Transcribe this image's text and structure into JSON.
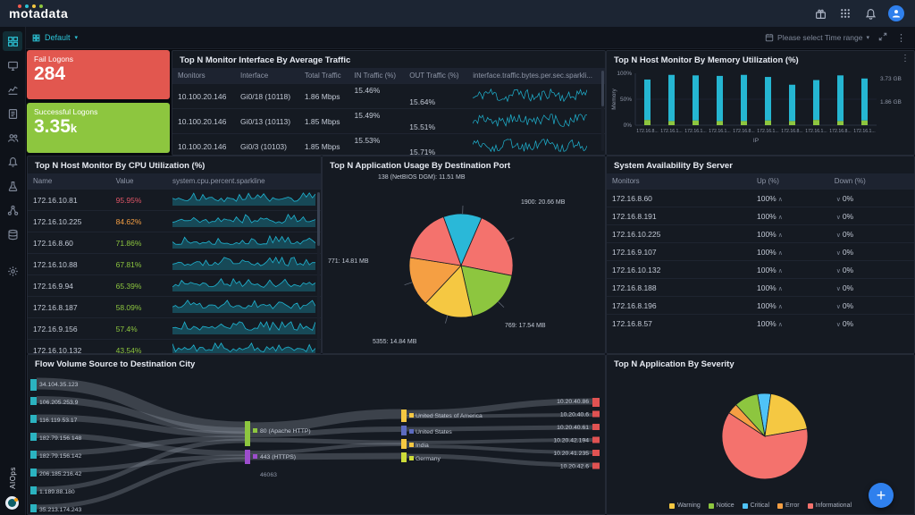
{
  "topbar": {
    "logo_text": "motadata",
    "logo_dot_colors": [
      "#f05a4f",
      "#2cc3d6",
      "#f5c842",
      "#8dc63f"
    ],
    "icons": [
      "gift-icon",
      "apps-icon",
      "bell-icon",
      "user-avatar"
    ]
  },
  "toolbar": {
    "dashboard_selector": "Default",
    "time_range_placeholder": "Please select Time range"
  },
  "sidebar": {
    "bottom_label": "AIOps",
    "items": [
      "dashboard",
      "monitor",
      "metrics",
      "reports",
      "users",
      "alerts",
      "ncm",
      "topology",
      "logs",
      "settings"
    ]
  },
  "stats": {
    "fail": {
      "title": "Fail Logons",
      "value": "284",
      "suffix": "",
      "color": "#e2574f"
    },
    "success": {
      "title": "Successful Logons",
      "value": "3.35",
      "suffix": "k",
      "color": "#8dc63f"
    }
  },
  "traffic_panel": {
    "title": "Top N Monitor Interface By Average Traffic",
    "columns": [
      "Monitors",
      "Interface",
      "Total Traffic",
      "IN Traffic (%)",
      "OUT Traffic (%)",
      "interface.traffic.bytes.per.sec.sparkli..."
    ],
    "rows": [
      {
        "monitor": "10.100.20.146",
        "iface": "Gi0/18 (10118)",
        "total": "1.86 Mbps",
        "in": "15.46%",
        "out": "15.64%"
      },
      {
        "monitor": "10.100.20.146",
        "iface": "Gi0/13 (10113)",
        "total": "1.85 Mbps",
        "in": "15.49%",
        "out": "15.51%"
      },
      {
        "monitor": "10.100.20.146",
        "iface": "Gi0/3 (10103)",
        "total": "1.85 Mbps",
        "in": "15.53%",
        "out": "15.71%"
      }
    ]
  },
  "memory_panel": {
    "title": "Top N Host Monitor By Memory Utilization (%)",
    "chart": {
      "type": "bar",
      "ylabel": "Memory",
      "xlabel": "IP",
      "yticks": [
        "100%",
        "50%",
        "0%"
      ],
      "right_labels": [
        "3.73 GB",
        "1.86 GB"
      ],
      "categories": [
        "172.16.8...",
        "172.16.1...",
        "172.16.1...",
        "172.16.1...",
        "172.16.8...",
        "172.16.1...",
        "172.16.8...",
        "172.16.1...",
        "172.16.8...",
        "172.16.1..."
      ],
      "values": [
        88,
        97,
        96,
        95,
        97,
        93,
        78,
        87,
        96,
        90
      ],
      "base_values": [
        10,
        8,
        9,
        8,
        8,
        9,
        8,
        10,
        8,
        9
      ],
      "bar_color": "#25b6d2",
      "base_color": "#8dc63f",
      "ylim": [
        0,
        100
      ]
    }
  },
  "cpu_panel": {
    "title": "Top N Host Monitor By CPU Utilization (%)",
    "columns": [
      "Name",
      "Value",
      "system.cpu.percent.sparkline"
    ],
    "rows": [
      {
        "name": "172.16.10.81",
        "value": "95.95%",
        "level": "critical"
      },
      {
        "name": "172.16.10.225",
        "value": "84.62%",
        "level": "warning"
      },
      {
        "name": "172.16.8.60",
        "value": "71.86%",
        "level": "ok"
      },
      {
        "name": "172.16.10.88",
        "value": "67.81%",
        "level": "ok"
      },
      {
        "name": "172.16.9.94",
        "value": "65.39%",
        "level": "ok"
      },
      {
        "name": "172.16.8.187",
        "value": "58.09%",
        "level": "ok"
      },
      {
        "name": "172.16.9.156",
        "value": "57.4%",
        "level": "ok"
      },
      {
        "name": "172.16.10.132",
        "value": "43.54%",
        "level": "ok"
      }
    ]
  },
  "port_pie_panel": {
    "title": "Top N Application Usage By Destination Port",
    "chart": {
      "type": "pie",
      "slices": [
        {
          "label": "138 (NetBIOS DGM): 11.51 MB",
          "value": 11.51,
          "color": "#2ab8d8"
        },
        {
          "label": "1900: 20.66 MB",
          "value": 20.66,
          "color": "#f4726d"
        },
        {
          "label": "769: 17.54 MB",
          "value": 17.54,
          "color": "#8dc63f"
        },
        {
          "label": "5355: 14.84 MB",
          "value": 14.84,
          "color": "#f5c842"
        },
        {
          "label": "771: 14.81 MB",
          "value": 14.81,
          "color": "#f59f43"
        },
        {
          "label": "",
          "value": 16.2,
          "color": "#f4726d"
        }
      ]
    }
  },
  "availability_panel": {
    "title": "System Availability By Server",
    "columns": [
      "Monitors",
      "Up (%)",
      "Down (%)"
    ],
    "rows": [
      {
        "monitor": "172.16.8.60",
        "up": "100%",
        "down": "0%"
      },
      {
        "monitor": "172.16.8.191",
        "up": "100%",
        "down": "0%"
      },
      {
        "monitor": "172.16.10.225",
        "up": "100%",
        "down": "0%"
      },
      {
        "monitor": "172.16.9.107",
        "up": "100%",
        "down": "0%"
      },
      {
        "monitor": "172.16.10.132",
        "up": "100%",
        "down": "0%"
      },
      {
        "monitor": "172.16.8.188",
        "up": "100%",
        "down": "0%"
      },
      {
        "monitor": "172.16.8.196",
        "up": "100%",
        "down": "0%"
      },
      {
        "monitor": "172.16.8.57",
        "up": "100%",
        "down": "0%"
      }
    ]
  },
  "sankey_panel": {
    "title": "Flow Volume Source to Destination City",
    "source_ips": [
      "34.104.35.123",
      "106.205.253.9",
      "116.119.53.17",
      "182.79.156.148",
      "182.79.156.142",
      "206.185.216.42",
      "1.189.88.180",
      "35.213.174.243"
    ],
    "ports": [
      {
        "label": "80 (Apache HTTP)",
        "color": "#8dc63f"
      },
      {
        "label": "443 (HTTPS)",
        "color": "#9c4dcc"
      },
      {
        "label": "46063",
        "color": ""
      }
    ],
    "countries": [
      {
        "label": "United States of America",
        "color": "#f5c842"
      },
      {
        "label": "United States",
        "color": "#5c6bc0"
      },
      {
        "label": "India",
        "color": "#f5c842"
      },
      {
        "label": "Germany",
        "color": "#cddc39"
      }
    ],
    "dest_ips": [
      "10.20.40.86",
      "10.20.40.6",
      "10.20.40.61",
      "10.20.42.194",
      "10.20.41.235",
      "10.20.42.6"
    ]
  },
  "severity_pie_panel": {
    "title": "Top N Application By Severity",
    "chart": {
      "type": "pie",
      "slices": [
        {
          "label": "Critical",
          "value": 5,
          "color": "#4fc3f7"
        },
        {
          "label": "Warning",
          "value": 20,
          "color": "#f5c842"
        },
        {
          "label": "Informational",
          "value": 62,
          "color": "#f4726d"
        },
        {
          "label": "Error",
          "value": 4,
          "color": "#f59f43"
        },
        {
          "label": "Notice",
          "value": 9,
          "color": "#8dc63f"
        }
      ],
      "legend": [
        "Warning",
        "Notice",
        "Critical",
        "Error",
        "Informational"
      ]
    }
  },
  "fab": {
    "label": "+"
  }
}
